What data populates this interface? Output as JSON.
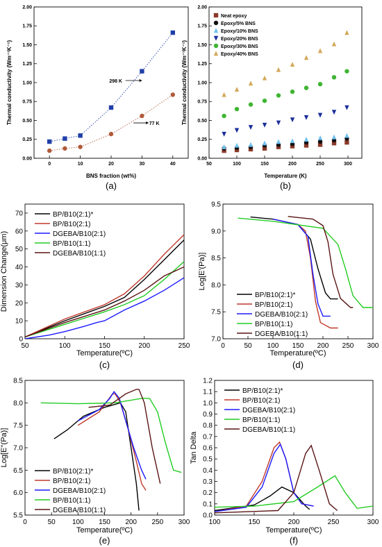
{
  "chart_data": [
    {
      "type": "scatter",
      "panel_label": "(a)",
      "xlabel": "BNS fraction (wt%)",
      "ylabel": "Thermal conductivity (Wm⁻¹K⁻¹)",
      "xlim": [
        -5,
        45
      ],
      "ylim": [
        0,
        2.0
      ],
      "xticks": [
        0,
        10,
        20,
        30,
        40
      ],
      "yticks": [
        0.0,
        0.25,
        0.5,
        0.75,
        1.0,
        1.25,
        1.5,
        1.75,
        2.0
      ],
      "grid": false,
      "series": [
        {
          "name": "298 K",
          "color": "#1f3fa8",
          "marker": "square",
          "x": [
            0,
            5,
            10,
            20,
            30,
            40
          ],
          "y": [
            0.22,
            0.26,
            0.3,
            0.67,
            1.15,
            1.66
          ]
        },
        {
          "name": "77 K",
          "color": "#b05a3a",
          "marker": "circle",
          "x": [
            0,
            5,
            10,
            20,
            30,
            40
          ],
          "y": [
            0.1,
            0.13,
            0.15,
            0.32,
            0.56,
            0.84
          ]
        }
      ],
      "annotations": [
        {
          "text": "298 K",
          "x": 21.5,
          "y": 1.0
        },
        {
          "text": "77 K",
          "x": 34,
          "y": 0.44
        }
      ]
    },
    {
      "type": "scatter",
      "panel_label": "(b)",
      "xlabel": "Temperature (K)",
      "ylabel": "Thermal conductivity (Wm⁻¹K⁻¹)",
      "xlim": [
        50,
        325
      ],
      "ylim": [
        0,
        2.0
      ],
      "xticks": [
        50,
        100,
        150,
        200,
        250,
        300
      ],
      "yticks": [
        0.0,
        0.25,
        0.5,
        0.75,
        1.0,
        1.25,
        1.5,
        1.75,
        2.0
      ],
      "grid": false,
      "legend": "top-left",
      "x": [
        77,
        100,
        125,
        150,
        175,
        200,
        225,
        250,
        275,
        298
      ],
      "series": [
        {
          "name": "Neat epoxy",
          "color": "#8b3a2a",
          "marker": "square",
          "values": [
            0.1,
            0.11,
            0.12,
            0.13,
            0.15,
            0.16,
            0.17,
            0.18,
            0.2,
            0.21
          ]
        },
        {
          "name": "Epoxy/5% BNS",
          "color": "#111111",
          "marker": "circle",
          "values": [
            0.13,
            0.14,
            0.15,
            0.17,
            0.18,
            0.19,
            0.21,
            0.22,
            0.24,
            0.26
          ]
        },
        {
          "name": "Epoxy/10% BNS",
          "color": "#6ec1ef",
          "marker": "triangle",
          "values": [
            0.15,
            0.17,
            0.18,
            0.2,
            0.22,
            0.23,
            0.25,
            0.27,
            0.28,
            0.3
          ]
        },
        {
          "name": "Epoxy/20% BNS",
          "color": "#1a2e9a",
          "marker": "triangle-down",
          "values": [
            0.32,
            0.37,
            0.41,
            0.44,
            0.47,
            0.51,
            0.54,
            0.57,
            0.61,
            0.67
          ]
        },
        {
          "name": "Epoxy/30% BNS",
          "color": "#3fb532",
          "marker": "circle",
          "values": [
            0.56,
            0.65,
            0.71,
            0.76,
            0.83,
            0.88,
            0.93,
            0.98,
            1.07,
            1.15
          ]
        },
        {
          "name": "Epoxy/40% BNS",
          "color": "#d3a85a",
          "marker": "triangle",
          "values": [
            0.84,
            0.91,
            0.99,
            1.06,
            1.17,
            1.24,
            1.33,
            1.42,
            1.51,
            1.66
          ]
        }
      ]
    },
    {
      "type": "line",
      "panel_label": "(c)",
      "xlabel": "Temperature(ºC)",
      "ylabel": "Dimension Change(μm)",
      "xlim": [
        50,
        250
      ],
      "ylim": [
        0,
        75
      ],
      "xticks": [
        50,
        100,
        150,
        200,
        250
      ],
      "yticks": [
        0,
        10,
        20,
        30,
        40,
        50,
        60,
        70
      ],
      "grid": false,
      "legend": "top-left",
      "series": [
        {
          "name": "BP/B10(2:1)*",
          "color": "#000000",
          "x": [
            50,
            100,
            150,
            175,
            200,
            225,
            250
          ],
          "y": [
            1,
            10,
            18,
            23,
            33,
            44,
            55
          ]
        },
        {
          "name": "BP/B10(2:1)",
          "color": "#c0392b",
          "x": [
            50,
            100,
            150,
            175,
            200,
            225,
            250
          ],
          "y": [
            1,
            11,
            19,
            25,
            35,
            47,
            58
          ]
        },
        {
          "name": "DGEBA/B10(2:1)",
          "color": "#1a1aff",
          "x": [
            50,
            80,
            100,
            125,
            140,
            150,
            175,
            200,
            225,
            250
          ],
          "y": [
            0,
            2,
            4,
            7,
            9,
            10,
            16,
            21,
            27,
            34
          ]
        },
        {
          "name": "BP/B10(1:1)",
          "color": "#22cc22",
          "x": [
            50,
            100,
            150,
            175,
            200,
            225,
            250
          ],
          "y": [
            1,
            8,
            15,
            19,
            24,
            33,
            43
          ]
        },
        {
          "name": "DGEBA/B10(1:1)",
          "color": "#5a1414",
          "x": [
            50,
            100,
            150,
            175,
            200,
            225,
            250
          ],
          "y": [
            1,
            9,
            16,
            21,
            27,
            35,
            40
          ]
        }
      ]
    },
    {
      "type": "line",
      "panel_label": "(d)",
      "xlabel": "Temperature(ºC)",
      "ylabel": "Log[E'(Pa)]",
      "xlim": [
        0,
        300
      ],
      "ylim": [
        7.0,
        9.5
      ],
      "xticks": [
        0,
        50,
        100,
        150,
        200,
        250,
        300
      ],
      "yticks": [
        7.0,
        7.5,
        8.0,
        8.5,
        9.0,
        9.5
      ],
      "grid": false,
      "legend": "bottom-left",
      "series": [
        {
          "name": "BP/B10(2:1)*",
          "color": "#000000",
          "x": [
            55,
            100,
            150,
            175,
            190,
            205,
            215,
            230
          ],
          "y": [
            9.26,
            9.22,
            9.12,
            8.85,
            8.3,
            7.85,
            7.74,
            7.74
          ]
        },
        {
          "name": "BP/B10(2:1)",
          "color": "#c0392b",
          "x": [
            100,
            150,
            165,
            175,
            185,
            195,
            215,
            230
          ],
          "y": [
            9.22,
            9.12,
            9.0,
            8.5,
            7.7,
            7.3,
            7.2,
            7.2
          ]
        },
        {
          "name": "DGEBA/B10(2:1)",
          "color": "#1a1aff",
          "x": [
            100,
            150,
            170,
            180,
            190,
            200,
            215
          ],
          "y": [
            9.22,
            9.12,
            8.9,
            8.2,
            7.65,
            7.42,
            7.42
          ]
        },
        {
          "name": "BP/B10(1:1)",
          "color": "#22cc22",
          "x": [
            30,
            100,
            200,
            230,
            245,
            260,
            280,
            300
          ],
          "y": [
            9.24,
            9.18,
            9.05,
            8.75,
            8.3,
            7.8,
            7.58,
            7.58
          ]
        },
        {
          "name": "DGEBA/B10(1:1)",
          "color": "#5a1414",
          "x": [
            130,
            180,
            200,
            210,
            220,
            235,
            255,
            260
          ],
          "y": [
            9.27,
            9.22,
            9.1,
            8.8,
            8.2,
            7.75,
            7.58,
            7.58
          ]
        }
      ]
    },
    {
      "type": "line",
      "panel_label": "(e)",
      "xlabel": "Temperature(ºC)",
      "ylabel": "Log[E''(Pa)]",
      "xlim": [
        0,
        300
      ],
      "ylim": [
        5.5,
        8.5
      ],
      "xticks": [
        0,
        50,
        100,
        150,
        200,
        250,
        300
      ],
      "yticks": [
        5.5,
        6.0,
        6.5,
        7.0,
        7.5,
        8.0,
        8.5
      ],
      "grid": false,
      "legend": "bottom-left",
      "series": [
        {
          "name": "BP/B10(2:1)*",
          "color": "#000000",
          "x": [
            55,
            80,
            110,
            150,
            180,
            190,
            200,
            210,
            215
          ],
          "y": [
            7.2,
            7.4,
            7.7,
            7.9,
            8.0,
            7.8,
            7.0,
            6.2,
            5.6
          ]
        },
        {
          "name": "BP/B10(2:1)",
          "color": "#c0392b",
          "x": [
            100,
            140,
            165,
            170,
            180,
            195,
            210,
            220,
            228
          ],
          "y": [
            7.5,
            7.8,
            8.2,
            8.2,
            8.0,
            7.4,
            6.7,
            6.2,
            6.05
          ]
        },
        {
          "name": "DGEBA/B10(2:1)",
          "color": "#1a1aff",
          "x": [
            100,
            140,
            160,
            168,
            178,
            190,
            205,
            220,
            228
          ],
          "y": [
            7.6,
            7.85,
            8.1,
            8.25,
            8.1,
            7.6,
            7.0,
            6.5,
            6.3
          ]
        },
        {
          "name": "BP/B10(1:1)",
          "color": "#22cc22",
          "x": [
            30,
            100,
            170,
            220,
            235,
            250,
            265,
            280,
            295
          ],
          "y": [
            8.0,
            7.98,
            8.0,
            8.1,
            8.1,
            7.8,
            7.1,
            6.5,
            6.45
          ]
        },
        {
          "name": "DGEBA/B10(1:1)",
          "color": "#5a1414",
          "x": [
            120,
            160,
            190,
            210,
            215,
            225,
            240,
            255
          ],
          "y": [
            7.9,
            7.95,
            8.2,
            8.3,
            8.3,
            8.0,
            7.0,
            6.2
          ]
        }
      ]
    },
    {
      "type": "line",
      "panel_label": "(f)",
      "xlabel": "Temperature(ºC)",
      "ylabel": "Tan Delta",
      "xlim": [
        100,
        300
      ],
      "ylim": [
        0,
        1.2
      ],
      "xticks": [
        100,
        150,
        200,
        250,
        300
      ],
      "yticks": [
        0.0,
        0.1,
        0.2,
        0.3,
        0.4,
        0.5,
        0.6,
        0.7,
        0.8,
        0.9,
        1.0,
        1.1,
        1.2
      ],
      "grid": false,
      "legend": "top-left",
      "series": [
        {
          "name": "BP/B10(2:1)*",
          "color": "#000000",
          "x": [
            100,
            150,
            170,
            185,
            200,
            215,
            220
          ],
          "y": [
            0.04,
            0.09,
            0.17,
            0.25,
            0.2,
            0.08,
            0.05
          ]
        },
        {
          "name": "BP/B10(2:1)",
          "color": "#c0392b",
          "x": [
            100,
            140,
            160,
            175,
            182,
            190,
            200,
            210,
            225
          ],
          "y": [
            0.03,
            0.08,
            0.3,
            0.6,
            0.65,
            0.5,
            0.2,
            0.1,
            0.08
          ]
        },
        {
          "name": "DGEBA/B10(2:1)",
          "color": "#1a1aff",
          "x": [
            100,
            140,
            160,
            175,
            183,
            190,
            200,
            210,
            225
          ],
          "y": [
            0.03,
            0.07,
            0.25,
            0.55,
            0.63,
            0.5,
            0.2,
            0.1,
            0.08
          ]
        },
        {
          "name": "BP/B10(1:1)",
          "color": "#22cc22",
          "x": [
            100,
            150,
            200,
            230,
            252,
            265,
            280,
            300
          ],
          "y": [
            0.07,
            0.08,
            0.12,
            0.25,
            0.35,
            0.2,
            0.06,
            0.08
          ]
        },
        {
          "name": "DGEBA/B10(1:1)",
          "color": "#5a1414",
          "x": [
            100,
            180,
            200,
            215,
            222,
            232,
            245,
            255
          ],
          "y": [
            0.02,
            0.04,
            0.2,
            0.55,
            0.62,
            0.4,
            0.1,
            0.04
          ]
        }
      ]
    }
  ]
}
